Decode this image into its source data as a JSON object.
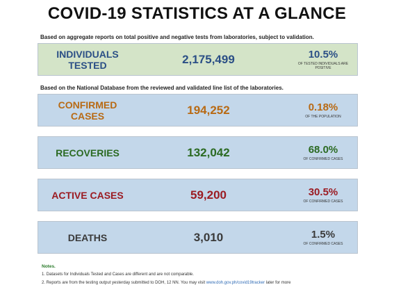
{
  "title": "COVID-19 STATISTICS AT A GLANCE",
  "caption1": "Based on aggregate reports on total positive and negative tests from laboratories, subject to validation.",
  "caption2": "Based on the National Database from the reviewed and validated line list of the laboratories.",
  "colors": {
    "green_bg": "#d4e4c8",
    "blue_bg": "#c3d7ea",
    "blue_text": "#2b4f86",
    "orange_text": "#b86a14",
    "green_text": "#2b6a22",
    "red_text": "#9b1b22",
    "gray_text": "#3a3a3a"
  },
  "cards": {
    "tested": {
      "label": "INDIVIDUALS TESTED",
      "value": "2,175,499",
      "pct": "10.5%",
      "sub": "OF TESTED INDIVIDUALS ARE POSITIVE"
    },
    "confirmed": {
      "label": "CONFIRMED CASES",
      "value": "194,252",
      "pct": "0.18%",
      "sub": "OF THE POPULATION"
    },
    "recoveries": {
      "label": "RECOVERIES",
      "value": "132,042",
      "pct": "68.0%",
      "sub": "OF CONFIRMED CASES"
    },
    "active": {
      "label": "ACTIVE CASES",
      "value": "59,200",
      "pct": "30.5%",
      "sub": "OF CONFIRMED CASES"
    },
    "deaths": {
      "label": "DEATHS",
      "value": "3,010",
      "pct": "1.5%",
      "sub": "OF CONFIRMED CASES"
    }
  },
  "notes": {
    "heading": "Notes.",
    "note1": "1. Datasets for Individuals Tested and Cases are different and are not comparable.",
    "note2_text": "2. Reports are from the testing output yesterday submitted to DOH, 12 NN. You may visit",
    "note2_link": "www.doh.gov.ph/covid19tracker",
    "note2_tail": "later for more"
  }
}
